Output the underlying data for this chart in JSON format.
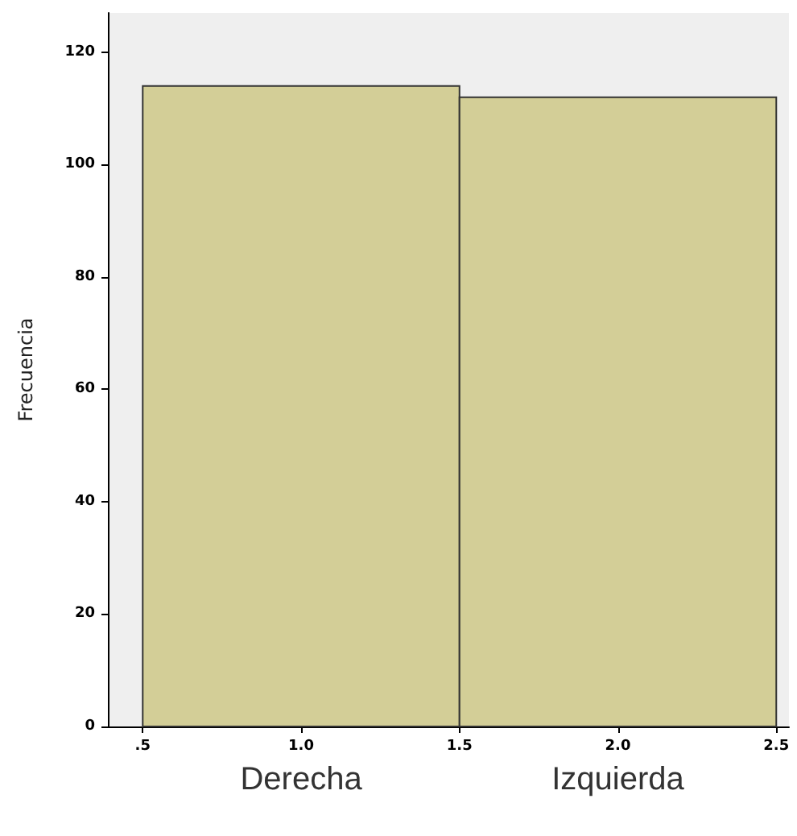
{
  "chart_data": {
    "type": "histogram",
    "ylabel": "Frecuencia",
    "bins": [
      0.5,
      1.5,
      2.5
    ],
    "values": [
      114,
      112
    ],
    "color": "#d3ce97",
    "xlim": [
      0.39,
      2.54
    ],
    "xticks": [
      {
        "value": 0.5,
        "label": ".5"
      },
      {
        "value": 1.0,
        "label": "1.0"
      },
      {
        "value": 1.5,
        "label": "1.5"
      },
      {
        "value": 2.0,
        "label": "2.0"
      },
      {
        "value": 2.5,
        "label": "2.5"
      }
    ],
    "ylim": [
      0,
      127
    ],
    "yticks": [
      0,
      20,
      40,
      60,
      80,
      100,
      120
    ],
    "annotations": [
      "Derecha",
      "Izquierda"
    ]
  }
}
